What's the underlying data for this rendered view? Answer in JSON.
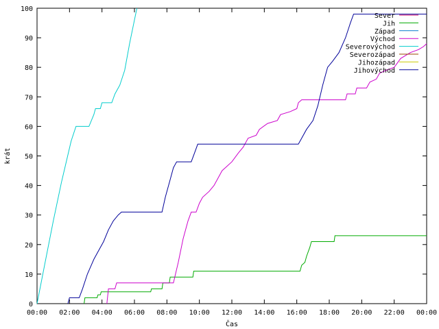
{
  "chart_data": {
    "type": "line",
    "title": "",
    "xlabel": "Čas",
    "ylabel": "krát",
    "xlim": [
      0,
      24
    ],
    "ylim": [
      0,
      100
    ],
    "x_ticks": [
      0,
      2,
      4,
      6,
      8,
      10,
      12,
      14,
      16,
      18,
      20,
      22,
      24
    ],
    "x_tick_labels": [
      "00:00",
      "02:00",
      "04:00",
      "06:00",
      "08:00",
      "10:00",
      "12:00",
      "14:00",
      "16:00",
      "18:00",
      "20:00",
      "22:00",
      "00:00"
    ],
    "y_ticks": [
      0,
      10,
      20,
      30,
      40,
      50,
      60,
      70,
      80,
      90,
      100
    ],
    "y_tick_labels": [
      "0",
      "10",
      "20",
      "30",
      "40",
      "50",
      "60",
      "70",
      "80",
      "90",
      "100"
    ],
    "grid": false,
    "legend_position": "top-right",
    "series": [
      {
        "name": "Sever",
        "color": "#cc0066",
        "points": []
      },
      {
        "name": "Jih",
        "color": "#00aa00",
        "points": [
          [
            2.9,
            0
          ],
          [
            2.95,
            2
          ],
          [
            3.7,
            2
          ],
          [
            3.75,
            3
          ],
          [
            3.9,
            3
          ],
          [
            3.95,
            4
          ],
          [
            7.0,
            4
          ],
          [
            7.05,
            5
          ],
          [
            7.7,
            5
          ],
          [
            7.75,
            7
          ],
          [
            8.15,
            7
          ],
          [
            8.2,
            9
          ],
          [
            9.6,
            9
          ],
          [
            9.65,
            11
          ],
          [
            16.2,
            11
          ],
          [
            16.3,
            13
          ],
          [
            16.5,
            14
          ],
          [
            16.6,
            16
          ],
          [
            16.8,
            19
          ],
          [
            16.9,
            21
          ],
          [
            18.3,
            21
          ],
          [
            18.35,
            23
          ],
          [
            24,
            23
          ]
        ]
      },
      {
        "name": "Západ",
        "color": "#0077cc",
        "points": []
      },
      {
        "name": "Východ",
        "color": "#cc00cc",
        "points": [
          [
            4.3,
            0
          ],
          [
            4.4,
            5
          ],
          [
            4.8,
            5
          ],
          [
            4.9,
            7
          ],
          [
            8.4,
            7
          ],
          [
            8.7,
            14
          ],
          [
            9.0,
            22
          ],
          [
            9.3,
            28
          ],
          [
            9.5,
            31
          ],
          [
            9.8,
            31
          ],
          [
            10.0,
            34
          ],
          [
            10.2,
            36
          ],
          [
            10.6,
            38
          ],
          [
            10.9,
            40
          ],
          [
            11.1,
            42
          ],
          [
            11.4,
            45
          ],
          [
            11.6,
            46
          ],
          [
            12.0,
            48
          ],
          [
            12.4,
            51
          ],
          [
            12.7,
            53
          ],
          [
            13.0,
            56
          ],
          [
            13.5,
            57
          ],
          [
            13.7,
            59
          ],
          [
            14.2,
            61
          ],
          [
            14.8,
            62
          ],
          [
            15.0,
            64
          ],
          [
            15.6,
            65
          ],
          [
            16.0,
            66
          ],
          [
            16.1,
            68
          ],
          [
            16.3,
            69
          ],
          [
            19.0,
            69
          ],
          [
            19.1,
            71
          ],
          [
            19.6,
            71
          ],
          [
            19.7,
            73
          ],
          [
            20.3,
            73
          ],
          [
            20.5,
            75
          ],
          [
            20.9,
            76
          ],
          [
            21.1,
            78
          ],
          [
            21.5,
            79
          ],
          [
            22.0,
            80
          ],
          [
            22.4,
            83
          ],
          [
            23.0,
            85
          ],
          [
            23.5,
            86
          ],
          [
            23.8,
            87
          ],
          [
            24,
            88
          ]
        ]
      },
      {
        "name": "Severovýchod",
        "color": "#00cccc",
        "points": [
          [
            0,
            0
          ],
          [
            0.5,
            14
          ],
          [
            1.0,
            28
          ],
          [
            1.5,
            41
          ],
          [
            1.8,
            48
          ],
          [
            2.1,
            55
          ],
          [
            2.4,
            60
          ],
          [
            3.2,
            60
          ],
          [
            3.5,
            64
          ],
          [
            3.6,
            66
          ],
          [
            3.9,
            66
          ],
          [
            4.0,
            68
          ],
          [
            4.6,
            68
          ],
          [
            4.8,
            71
          ],
          [
            5.1,
            74
          ],
          [
            5.4,
            79
          ],
          [
            5.7,
            88
          ],
          [
            6.0,
            96
          ],
          [
            6.15,
            100
          ]
        ]
      },
      {
        "name": "Severozápad",
        "color": "#994400",
        "points": []
      },
      {
        "name": "Jihozápad",
        "color": "#cccc00",
        "points": []
      },
      {
        "name": "Jihovýchod",
        "color": "#000099",
        "points": [
          [
            1.9,
            0
          ],
          [
            2.0,
            2
          ],
          [
            2.6,
            2
          ],
          [
            2.8,
            5
          ],
          [
            3.1,
            10
          ],
          [
            3.5,
            15
          ],
          [
            3.8,
            18
          ],
          [
            4.1,
            21
          ],
          [
            4.4,
            25
          ],
          [
            4.7,
            28
          ],
          [
            5.0,
            30
          ],
          [
            5.2,
            31
          ],
          [
            7.7,
            31
          ],
          [
            7.9,
            36
          ],
          [
            8.2,
            42
          ],
          [
            8.4,
            46
          ],
          [
            8.6,
            48
          ],
          [
            9.5,
            48
          ],
          [
            9.7,
            51
          ],
          [
            9.9,
            54
          ],
          [
            16.1,
            54
          ],
          [
            16.3,
            56
          ],
          [
            16.6,
            59
          ],
          [
            17.0,
            62
          ],
          [
            17.3,
            67
          ],
          [
            17.6,
            74
          ],
          [
            17.9,
            80
          ],
          [
            18.2,
            82
          ],
          [
            18.6,
            85
          ],
          [
            19.0,
            90
          ],
          [
            19.3,
            95
          ],
          [
            19.5,
            98
          ],
          [
            24,
            98
          ]
        ]
      }
    ]
  }
}
